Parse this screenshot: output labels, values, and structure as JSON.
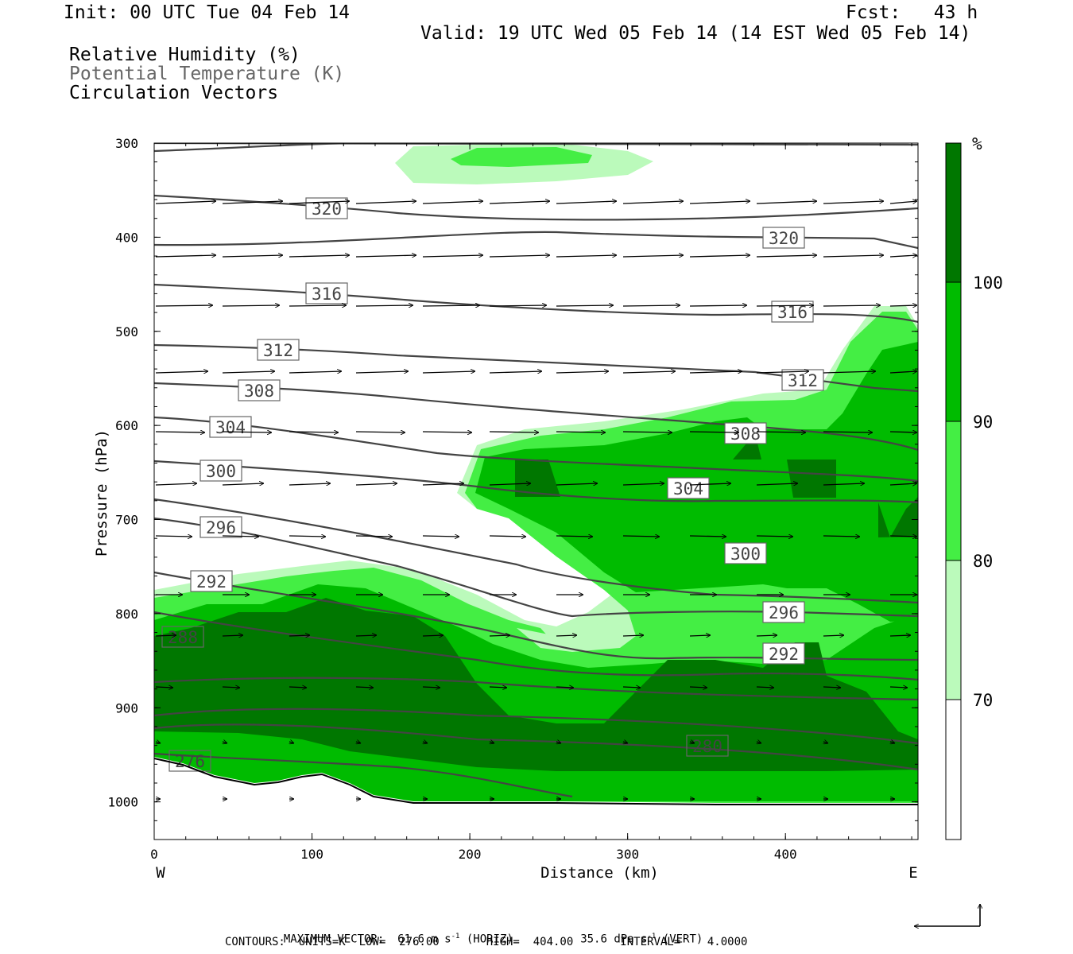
{
  "header": {
    "init": "Init: 00 UTC Tue 04 Feb 14",
    "fcst": "Fcst:   43 h",
    "valid": "Valid: 19 UTC Wed 05 Feb 14 (14 EST Wed 05 Feb 14)",
    "fields": [
      "Relative Humidity (%)",
      "Potential Temperature (K)",
      "Circulation Vectors"
    ]
  },
  "chart_data": {
    "type": "cross-section",
    "xlabel": "Distance (km)",
    "ylabel": "Pressure (hPa)",
    "xlim": [
      0,
      484
    ],
    "ylim": [
      300,
      1040
    ],
    "x_ticks": [
      "0",
      "100",
      "200",
      "300",
      "400"
    ],
    "y_ticks": [
      "300",
      "400",
      "500",
      "600",
      "700",
      "800",
      "900",
      "1000"
    ],
    "x_ends": {
      "left": "W",
      "right": "E"
    },
    "colorbar": {
      "unit": "%",
      "levels": [
        "70",
        "80",
        "90",
        "100"
      ],
      "colors": [
        "#ffffff",
        "#bbfabb",
        "#44ee44",
        "#00bb00",
        "#007700"
      ]
    },
    "theta_label_values": [
      "320",
      "320",
      "316",
      "316",
      "312",
      "312",
      "308",
      "308",
      "304",
      "304",
      "300",
      "300",
      "296",
      "296",
      "292",
      "292",
      "288",
      "280",
      "276"
    ],
    "footer": {
      "line1_label": "MAXIMUM VECTOR:",
      "horiz_value": "61.6 m s",
      "horiz_unit": "(HORIZ)",
      "vert_value": "35.6 dPa s",
      "vert_unit": "(VERT)",
      "exponent": "-1",
      "line2": "CONTOURS:  UNITS=K  LOW=  276.00       HIGH=  404.00       INTERVAL=    4.0000"
    }
  }
}
